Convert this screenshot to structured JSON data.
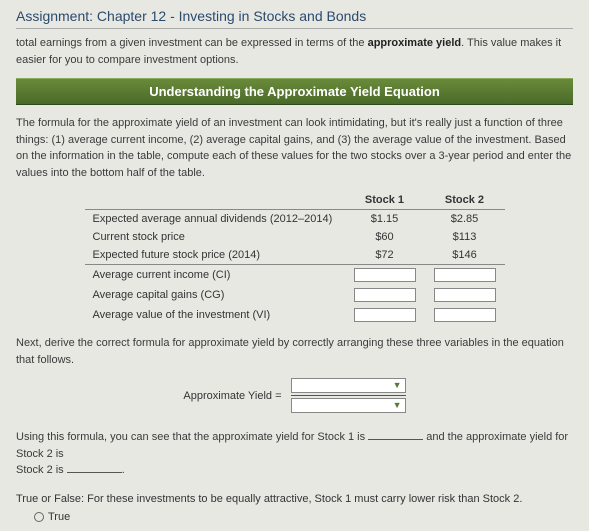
{
  "title": "Assignment: Chapter 12 - Investing in Stocks and Bonds",
  "intro_pre": "total earnings from a given investment can be expressed in terms of the ",
  "intro_bold": "approximate yield",
  "intro_post": ". This value makes it easier for you to compare investment options.",
  "band": "Understanding the Approximate Yield Equation",
  "para1": "The formula for the approximate yield of an investment can look intimidating, but it's really just a function of three things: (1) average current income, (2) average capital gains, and (3) the average value of the investment. Based on the information in the table, compute each of these values for the two stocks over a 3-year period and enter the values into the bottom half of the table.",
  "head_stock1": "Stock 1",
  "head_stock2": "Stock 2",
  "rows": {
    "r1_label": "Expected average annual dividends (2012–2014)",
    "r1_s1": "$1.15",
    "r1_s2": "$2.85",
    "r2_label": "Current stock price",
    "r2_s1": "$60",
    "r2_s2": "$113",
    "r3_label": "Expected future stock price (2014)",
    "r3_s1": "$72",
    "r3_s2": "$146",
    "r4_label": "Average current income (CI)",
    "r5_label": "Average capital gains (CG)",
    "r6_label": "Average value of the investment (VI)"
  },
  "para2": "Next, derive the correct formula for approximate yield by correctly arranging these three variables in the equation that follows.",
  "formula_label": "Approximate Yield  =",
  "para3_a": "Using this formula, you can see that the approximate yield for Stock 1 is ",
  "para3_b": " and the approximate yield for Stock 2 is ",
  "para3_c": ".",
  "tf": "True or False: For these investments to be equally attractive, Stock 1 must carry lower risk than Stock 2.",
  "opt_true": "True"
}
